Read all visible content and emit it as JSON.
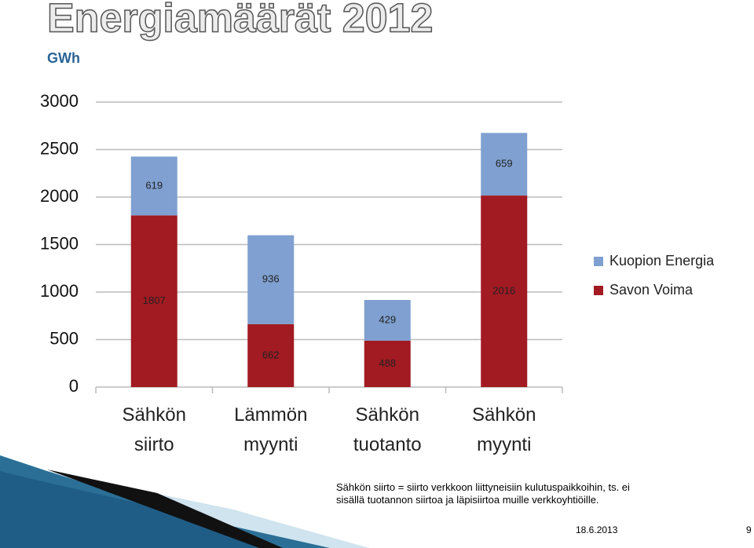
{
  "chart_data": {
    "type": "stacked_bar",
    "title": "Energiamäärät 2012",
    "subtitle": "GWh",
    "categories": [
      "Sähkön siirto",
      "Lämmön myynti",
      "Sähkön tuotanto",
      "Sähkön myynti"
    ],
    "series": [
      {
        "name": "Savon Voima",
        "color": "#a21a22",
        "values": [
          1807,
          662,
          488,
          2016
        ]
      },
      {
        "name": "Kuopion Energia",
        "color": "#7fa0d0",
        "values": [
          619,
          936,
          429,
          659
        ]
      }
    ],
    "ylim": [
      0,
      3000
    ],
    "yticks": [
      0,
      500,
      1000,
      1500,
      2000,
      2500,
      3000
    ],
    "grid": true,
    "legend": "right"
  },
  "footnote": "Sähkön siirto = siirto verkkoon liittyneisiin kulutuspaikkoihin, ts. ei sisällä tuotannon siirtoa ja läpisiirtoa muille verkkoyhtiöille.",
  "date": "18.6.2013",
  "page_number": "9"
}
